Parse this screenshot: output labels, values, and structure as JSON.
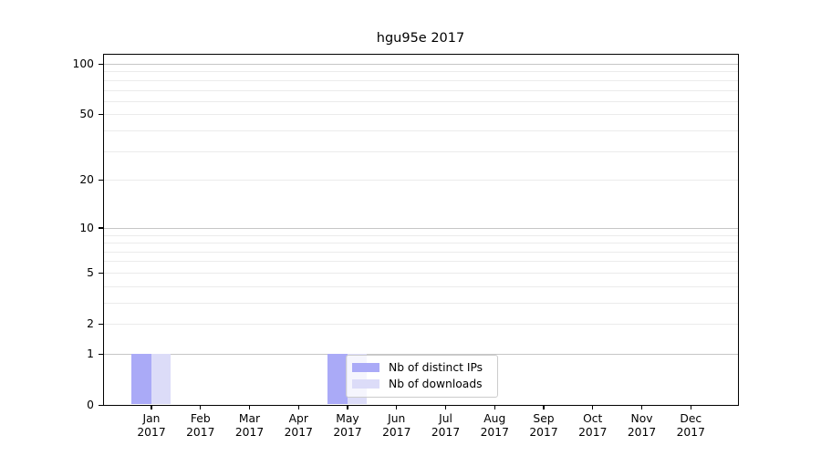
{
  "title": "hgu95e 2017",
  "chart_data": {
    "type": "bar",
    "title": "hgu95e 2017",
    "categories": [
      "Jan",
      "Feb",
      "Mar",
      "Apr",
      "May",
      "Jun",
      "Jul",
      "Aug",
      "Sep",
      "Oct",
      "Nov",
      "Dec"
    ],
    "x_year_label": "2017",
    "series": [
      {
        "name": "Nb of distinct IPs",
        "color": "#aaaaf7",
        "values": [
          1,
          0,
          0,
          0,
          1,
          0,
          0,
          0,
          0,
          0,
          0,
          0
        ]
      },
      {
        "name": "Nb of downloads",
        "color": "#dcdcf8",
        "values": [
          1,
          0,
          0,
          0,
          1,
          0,
          0,
          0,
          0,
          0,
          0,
          0
        ]
      }
    ],
    "y_axis": {
      "scale": "log1p",
      "tick_values": [
        0,
        1,
        2,
        5,
        10,
        20,
        50,
        100
      ],
      "max": 115,
      "major_gridlines": [
        1,
        10,
        100
      ],
      "minor_gridlines": [
        2,
        3,
        4,
        5,
        6,
        7,
        8,
        9,
        20,
        30,
        40,
        50,
        60,
        70,
        80,
        90
      ]
    },
    "grid": true,
    "legend_position": "inside-bottom-center-left",
    "colors": {
      "grid_major": "#c6c6c6",
      "grid_minor": "#ebebeb",
      "axis": "#000000",
      "text": "#000000",
      "background": "#ffffff",
      "legend_border": "#cccccc"
    }
  }
}
